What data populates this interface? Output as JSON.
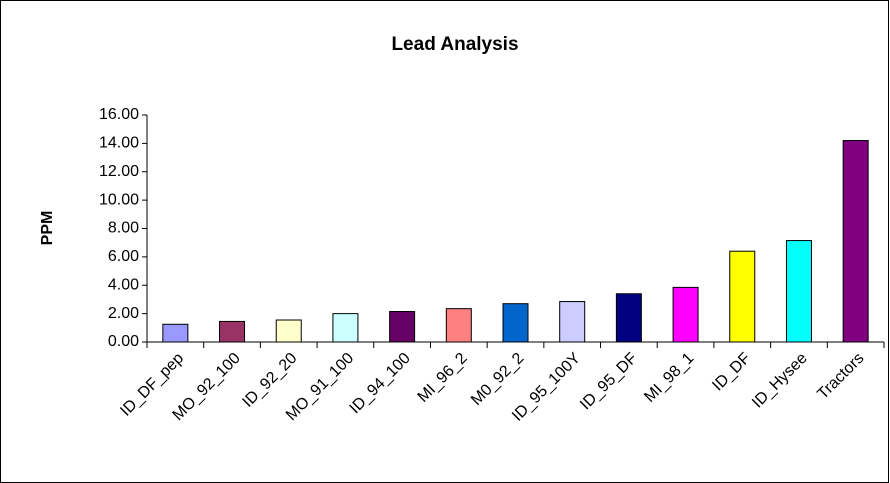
{
  "chart_data": {
    "type": "bar",
    "title": "Lead Analysis",
    "y_label": "PPM",
    "categories": [
      "ID_DF_pep",
      "MO_92_100",
      "ID_92_20",
      "MO_91_100",
      "ID_94_100",
      "MI_96_2",
      "M0_92_2",
      "ID_95_100Y",
      "ID_95_DF",
      "MI_98_1",
      "ID_DF",
      "ID_Hysee",
      "Tractors"
    ],
    "values": [
      1.25,
      1.45,
      1.55,
      2.0,
      2.15,
      2.35,
      2.7,
      2.85,
      3.4,
      3.85,
      6.4,
      7.15,
      14.2
    ],
    "colors": [
      "#9999ff",
      "#993366",
      "#ffffcc",
      "#ccffff",
      "#660066",
      "#ff8080",
      "#0066cc",
      "#ccccff",
      "#000080",
      "#ff00ff",
      "#ffff00",
      "#00ffff",
      "#800080"
    ],
    "ylim": [
      0,
      16
    ],
    "yticks": [
      {
        "value": 0,
        "label": "0.00"
      },
      {
        "value": 2,
        "label": "2.00"
      },
      {
        "value": 4,
        "label": "4.00"
      },
      {
        "value": 6,
        "label": "6.00"
      },
      {
        "value": 8,
        "label": "8.00"
      },
      {
        "value": 10,
        "label": "10.00"
      },
      {
        "value": 12,
        "label": "12.00"
      },
      {
        "value": 14,
        "label": "14.00"
      },
      {
        "value": 16,
        "label": "16.00"
      }
    ],
    "grid": false
  }
}
